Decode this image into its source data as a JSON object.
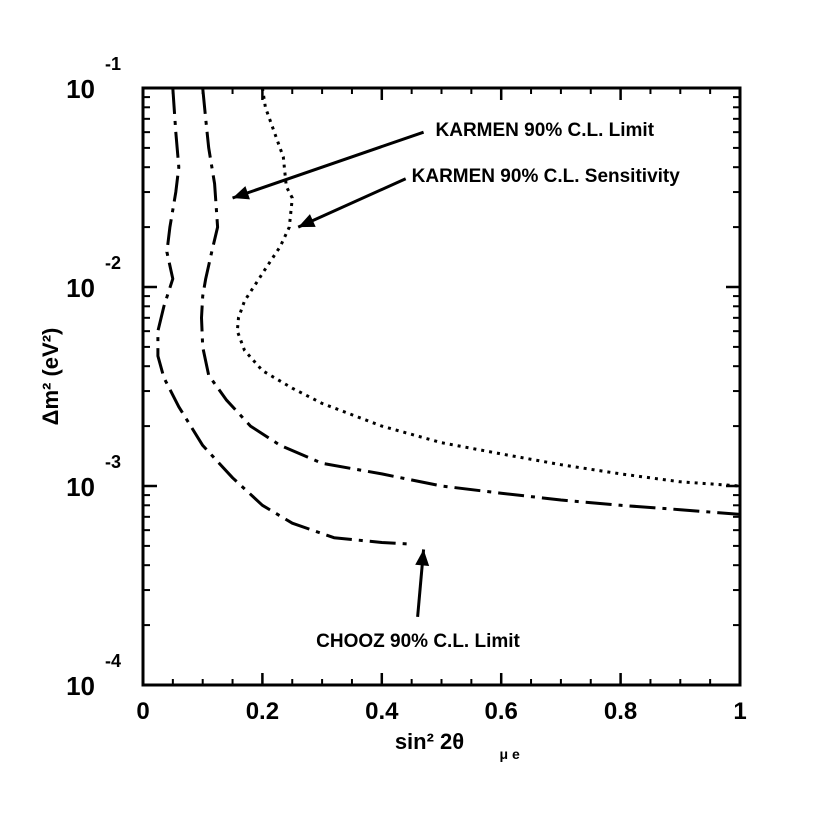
{
  "chart_data": {
    "type": "line",
    "title": "",
    "xlabel": "sin² 2θ",
    "xlabel_sub": "μ e",
    "ylabel": "Δm² (eV²)",
    "xlim": [
      0,
      1
    ],
    "ylim": [
      0.0001,
      0.1
    ],
    "y_scale": "log",
    "grid": false,
    "x_ticks": [
      {
        "value": 0,
        "label": "0"
      },
      {
        "value": 0.2,
        "label": "0.2"
      },
      {
        "value": 0.4,
        "label": "0.4"
      },
      {
        "value": 0.6,
        "label": "0.6"
      },
      {
        "value": 0.8,
        "label": "0.8"
      },
      {
        "value": 1,
        "label": "1"
      }
    ],
    "y_ticks": [
      {
        "value": 0.1,
        "base": "10",
        "exp": "-1"
      },
      {
        "value": 0.01,
        "base": "10",
        "exp": "-2"
      },
      {
        "value": 0.001,
        "base": "10",
        "exp": "-3"
      },
      {
        "value": 0.0001,
        "base": "10",
        "exp": "-4"
      }
    ],
    "series": [
      {
        "name": "KARMEN 90% C.L. Limit",
        "style": "dashdot",
        "points": [
          [
            0.1,
            0.1
          ],
          [
            0.105,
            0.07
          ],
          [
            0.11,
            0.05
          ],
          [
            0.12,
            0.033
          ],
          [
            0.125,
            0.02
          ],
          [
            0.115,
            0.015
          ],
          [
            0.105,
            0.011
          ],
          [
            0.1,
            0.009
          ],
          [
            0.098,
            0.007
          ],
          [
            0.1,
            0.005
          ],
          [
            0.11,
            0.0036
          ],
          [
            0.14,
            0.0027
          ],
          [
            0.18,
            0.002
          ],
          [
            0.23,
            0.0016
          ],
          [
            0.3,
            0.0013
          ],
          [
            0.4,
            0.00115
          ],
          [
            0.5,
            0.001
          ],
          [
            0.6,
            0.00092
          ],
          [
            0.7,
            0.00085
          ],
          [
            0.8,
            0.0008
          ],
          [
            0.9,
            0.00076
          ],
          [
            1.0,
            0.00072
          ]
        ]
      },
      {
        "name": "KARMEN 90% C.L. Sensitivity",
        "style": "dotted",
        "points": [
          [
            0.2,
            0.1
          ],
          [
            0.205,
            0.08
          ],
          [
            0.22,
            0.06
          ],
          [
            0.235,
            0.045
          ],
          [
            0.24,
            0.032
          ],
          [
            0.25,
            0.028
          ],
          [
            0.245,
            0.02
          ],
          [
            0.23,
            0.016
          ],
          [
            0.21,
            0.013
          ],
          [
            0.19,
            0.0105
          ],
          [
            0.17,
            0.0085
          ],
          [
            0.16,
            0.007
          ],
          [
            0.158,
            0.006
          ],
          [
            0.17,
            0.0048
          ],
          [
            0.2,
            0.0038
          ],
          [
            0.25,
            0.0031
          ],
          [
            0.3,
            0.0026
          ],
          [
            0.4,
            0.002
          ],
          [
            0.5,
            0.00165
          ],
          [
            0.6,
            0.00145
          ],
          [
            0.7,
            0.00128
          ],
          [
            0.8,
            0.00115
          ],
          [
            0.9,
            0.00105
          ],
          [
            1.0,
            0.001
          ]
        ]
      },
      {
        "name": "CHOOZ 90% C.L. Limit",
        "style": "dashdot",
        "points": [
          [
            0.05,
            0.1
          ],
          [
            0.055,
            0.06
          ],
          [
            0.06,
            0.04
          ],
          [
            0.055,
            0.03
          ],
          [
            0.045,
            0.02
          ],
          [
            0.04,
            0.015
          ],
          [
            0.05,
            0.011
          ],
          [
            0.035,
            0.008
          ],
          [
            0.025,
            0.006
          ],
          [
            0.025,
            0.0045
          ],
          [
            0.035,
            0.0035
          ],
          [
            0.06,
            0.0025
          ],
          [
            0.1,
            0.0016
          ],
          [
            0.15,
            0.0011
          ],
          [
            0.2,
            0.0008
          ],
          [
            0.25,
            0.00065
          ],
          [
            0.32,
            0.00055
          ],
          [
            0.4,
            0.00052
          ],
          [
            0.45,
            0.00051
          ]
        ]
      }
    ],
    "annotations": [
      {
        "text": "KARMEN 90% C.L. Limit",
        "series_index": 0,
        "text_at": [
          0.49,
          0.063
        ],
        "arrow_from": [
          0.47,
          0.06
        ],
        "arrow_to": [
          0.15,
          0.028
        ]
      },
      {
        "text": "KARMEN 90% C.L. Sensitivity",
        "series_index": 1,
        "text_at": [
          0.45,
          0.037
        ],
        "arrow_from": [
          0.44,
          0.035
        ],
        "arrow_to": [
          0.26,
          0.02
        ]
      },
      {
        "text": "CHOOZ 90% C.L. Limit",
        "series_index": 2,
        "text_at": [
          0.29,
          0.00017
        ],
        "arrow_from": [
          0.46,
          0.00022
        ],
        "arrow_to": [
          0.47,
          0.00048
        ]
      }
    ]
  }
}
